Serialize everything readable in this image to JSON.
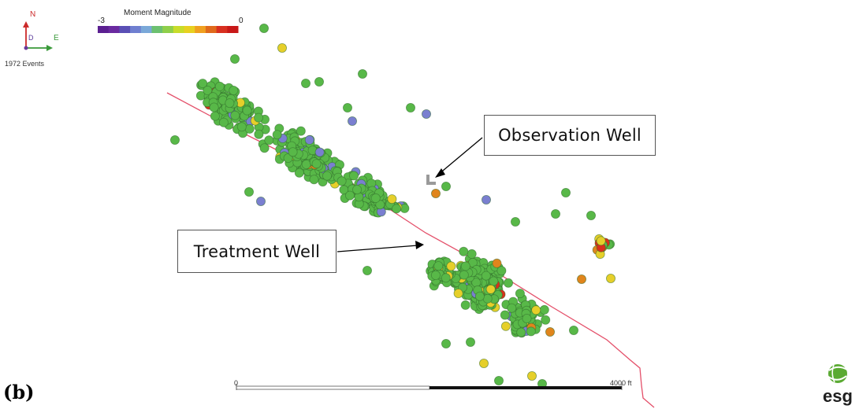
{
  "panel_label": "(b)",
  "events_count": "1972 Events",
  "compass": {
    "north": "N",
    "east": "E",
    "down": "D"
  },
  "colorbar": {
    "title": "Moment Magnitude",
    "min_label": "-3",
    "max_label": "0",
    "colors": [
      "#5b1f91",
      "#6a2aa0",
      "#5a4fb5",
      "#6f7fd0",
      "#7aa8d8",
      "#6cc070",
      "#8fcf4a",
      "#c8dc2a",
      "#e8d020",
      "#f0a020",
      "#e06a1c",
      "#d83020",
      "#c81818"
    ]
  },
  "callouts": {
    "observation_well": "Observation Well",
    "treatment_well": "Treatment Well"
  },
  "scale_bar": {
    "start_label": "0",
    "end_label": "4000 ft"
  },
  "logo": {
    "text": "esg",
    "icon": "globe-icon"
  },
  "map": {
    "event_colors": {
      "green": "#58b848",
      "blue": "#7a7fd0",
      "yellow": "#e6cf2a",
      "orange": "#e0851c",
      "red": "#d9301c"
    },
    "well_trace_color": "#e4506a"
  }
}
